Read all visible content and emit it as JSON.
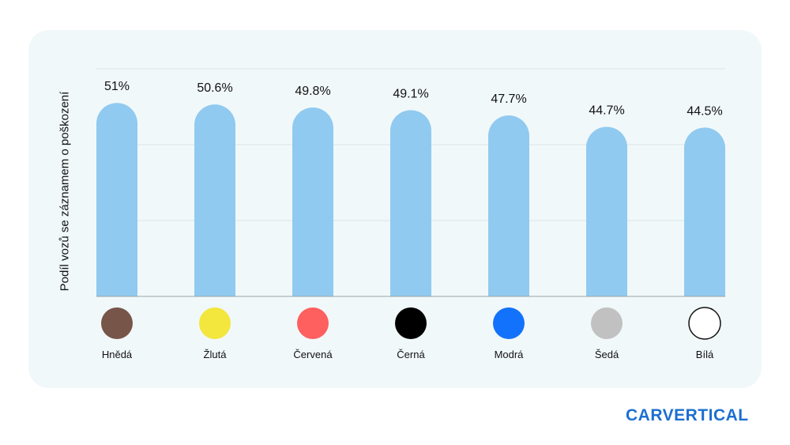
{
  "chart_data": {
    "type": "bar",
    "ylabel": "Podíl vozů se záznamem o poškození",
    "xlabel": "",
    "categories": [
      "Hnědá",
      "Žlutá",
      "Červená",
      "Černá",
      "Modrá",
      "Šedá",
      "Bílá"
    ],
    "values": [
      51,
      50.6,
      49.8,
      49.1,
      47.7,
      44.7,
      44.5
    ],
    "value_labels": [
      "51%",
      "50.6%",
      "49.8%",
      "49.1%",
      "47.7%",
      "44.7%",
      "44.5%"
    ],
    "swatch_colors": [
      "#775549",
      "#f3e63d",
      "#fe5f5f",
      "#000000",
      "#1372fb",
      "#c1c1c1",
      "#ffffff"
    ],
    "bar_color": "#90caf0",
    "grid": true
  },
  "brand": {
    "logo_text": "CARVERTICAL",
    "color": "#1c6fd1"
  }
}
